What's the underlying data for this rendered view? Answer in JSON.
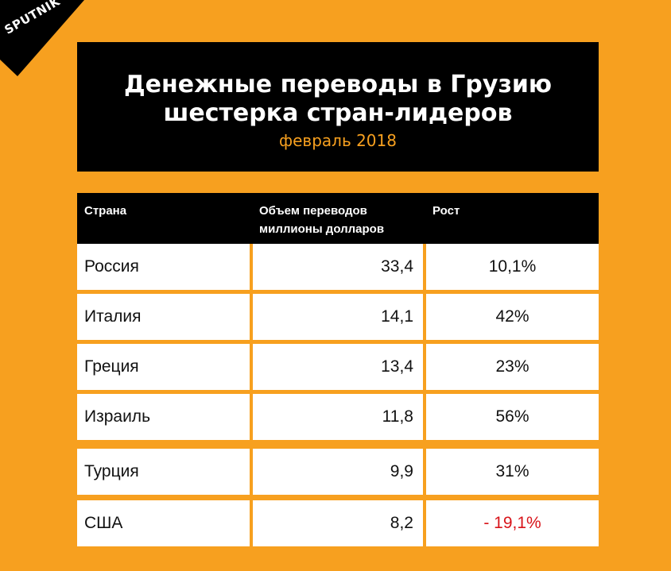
{
  "brand": {
    "logo_text": "SPUTNIK",
    "logo_color": "#000000"
  },
  "header": {
    "title_line1": "Денежные переводы в Грузию",
    "title_line2": "шестерка стран-лидеров",
    "subtitle": "февраль 2018"
  },
  "colors": {
    "background": "#f7a01f",
    "header_bg": "#000000",
    "negative": "#d8141a"
  },
  "chart_data": {
    "type": "table",
    "columns": [
      "Страна",
      "Объем переводов",
      "миллионы долларов",
      "Рост"
    ],
    "rows": [
      {
        "country": "Россия",
        "volume": "33,4",
        "growth": "10,1%"
      },
      {
        "country": "Италия",
        "volume": "14,1",
        "growth": "42%"
      },
      {
        "country": "Греция",
        "volume": "13,4",
        "growth": "23%"
      },
      {
        "country": "Израиль",
        "volume": "11,8",
        "growth": "56%"
      },
      {
        "country": "Турция",
        "volume": "9,9",
        "growth": "31%"
      },
      {
        "country": "США",
        "volume": "8,2",
        "growth": "- 19,1%"
      }
    ],
    "volume_values": [
      33.4,
      14.1,
      13.4,
      11.8,
      9.9,
      8.2
    ],
    "growth_values": [
      10.1,
      42,
      23,
      56,
      31,
      -19.1
    ]
  }
}
